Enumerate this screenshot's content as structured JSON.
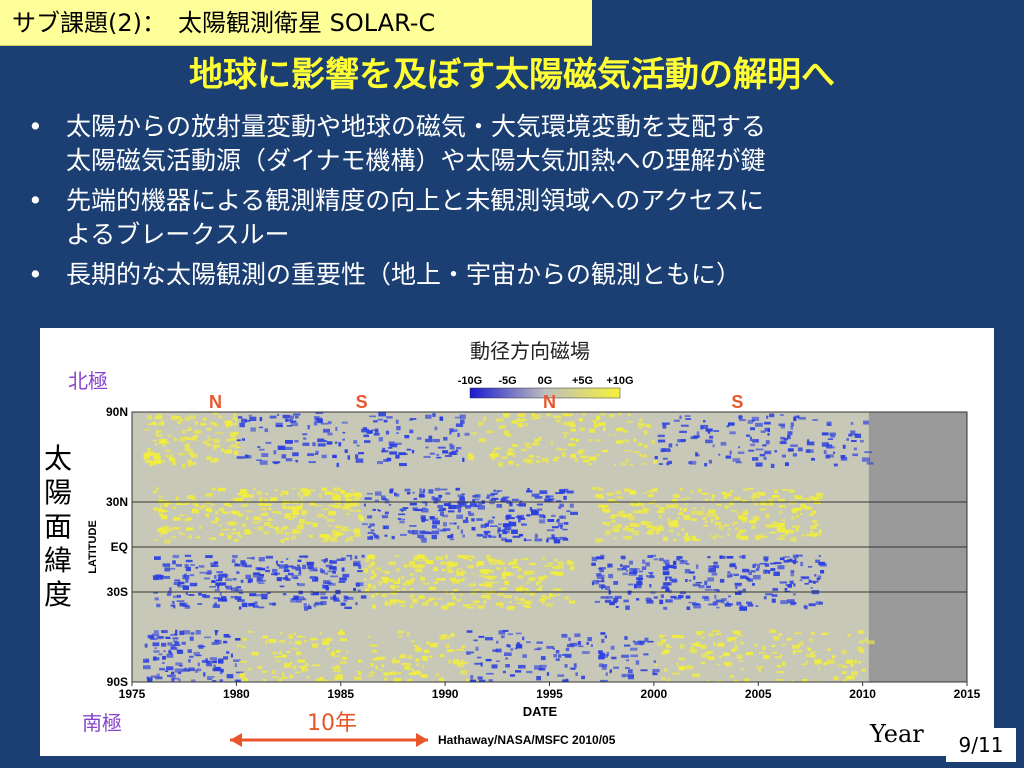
{
  "slide": {
    "tag": "サブ課題(2)：　太陽観測衛星 SOLAR-C",
    "headline": "地球に影響を及ぼす太陽磁気活動の解明へ",
    "bullets": [
      {
        "line1": "太陽からの放射量変動や地球の磁気・大気環境変動を支配する",
        "line2": "太陽磁気活動源（ダイナモ機構）や太陽大気加熱への理解が鍵"
      },
      {
        "line1": "先端的機器による観測精度の向上と未観測領域へのアクセスに",
        "line2": "よるブレークスルー"
      },
      {
        "line1": "長期的な太陽観測の重要性（地上・宇宙からの観測ともに）",
        "line2": ""
      }
    ],
    "bullet_glyph": "•",
    "page_number": "9/11"
  },
  "figure": {
    "title": "動径方向磁場",
    "colorbar_labels": [
      "-10G",
      "-5G",
      "0G",
      "+5G",
      "+10G"
    ],
    "north_pole_label": "北極",
    "south_pole_label": "南極",
    "y_axis_jp_label": "太陽面緯度",
    "polarity_markers": [
      {
        "label": "N",
        "year": 1979
      },
      {
        "label": "S",
        "year": 1986
      },
      {
        "label": "N",
        "year": 1995
      },
      {
        "label": "S",
        "year": 2004
      }
    ],
    "ten_years_label": "10年",
    "credit": "Hathaway/NASA/MSFC 2010/05",
    "year_label": "Year",
    "colors": {
      "blue": "#2a3fe0",
      "yellow": "#f2ee3c",
      "gray": "#9a9a9a",
      "arrow": "#e8562a",
      "pole_label": "#8844cc"
    }
  },
  "chart_data": {
    "type": "heatmap",
    "title": "",
    "xlabel": "DATE",
    "ylabel": "LATITUDE",
    "xlim": [
      1975,
      2015
    ],
    "x_ticks": [
      "1975",
      "1980",
      "1985",
      "1990",
      "1995",
      "2000",
      "2005",
      "2010",
      "2015"
    ],
    "y_ticks": [
      "90N",
      "30N",
      "EQ",
      "30S",
      "90S"
    ],
    "data_end_year": 2010.3,
    "color_scale": {
      "min": -10,
      "max": 10,
      "unit": "G"
    }
  }
}
